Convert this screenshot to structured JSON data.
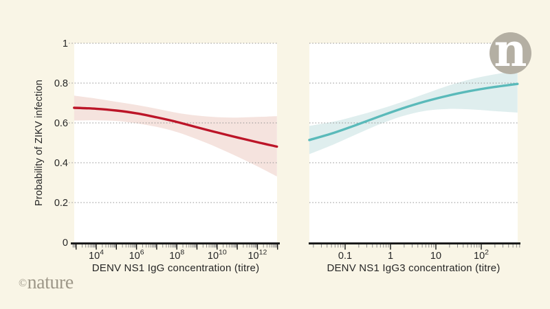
{
  "background": "#f9f5e6",
  "branding": {
    "logo_letter": "n",
    "logo_bg": "#b4afa3",
    "credit_symbol": "©",
    "credit_name": "nature",
    "credit_color": "#9e9889"
  },
  "chart_data": {
    "type": "line",
    "title": "",
    "description": "Two-panel fitted probability curves with confidence bands",
    "legend": "none",
    "y_axis": {
      "label": "Probability of ZIKV infection",
      "range": [
        0,
        1
      ],
      "ticks": [
        0,
        0.2,
        0.4,
        0.6,
        0.8,
        1
      ],
      "gridlines": "dotted horizontal at 0.2,0.4,0.6,0.8,1"
    },
    "panels": [
      {
        "name": "DENV NS1 IgG",
        "xlabel": "DENV NS1 IgG concentration (titre)",
        "x_scale": "log10",
        "x_domain_log10": [
          2.9,
          12.97
        ],
        "x_major_tick_logs": [
          3,
          4,
          5,
          6,
          7,
          8,
          9,
          10,
          11,
          12,
          13
        ],
        "x_tick_labels": [
          {
            "log": 4,
            "text": "10",
            "sup": "4"
          },
          {
            "log": 6,
            "text": "10",
            "sup": "6"
          },
          {
            "log": 8,
            "text": "10",
            "sup": "8"
          },
          {
            "log": 10,
            "text": "10",
            "sup": "10"
          },
          {
            "log": 12,
            "text": "10",
            "sup": "12"
          }
        ],
        "trend": "decreasing",
        "line_color": "#bc1528",
        "band_color": "#f5e3de",
        "line_log10x_y": [
          [
            2.9,
            0.676
          ],
          [
            4,
            0.671
          ],
          [
            5,
            0.662
          ],
          [
            6,
            0.648
          ],
          [
            7,
            0.628
          ],
          [
            8,
            0.605
          ],
          [
            9,
            0.578
          ],
          [
            10,
            0.552
          ],
          [
            11,
            0.527
          ],
          [
            12,
            0.503
          ],
          [
            12.97,
            0.481
          ]
        ],
        "band_upper_log10x_y": [
          [
            2.9,
            0.737
          ],
          [
            4,
            0.722
          ],
          [
            5,
            0.706
          ],
          [
            6,
            0.69
          ],
          [
            7,
            0.671
          ],
          [
            8,
            0.651
          ],
          [
            9,
            0.637
          ],
          [
            10,
            0.629
          ],
          [
            11,
            0.627
          ],
          [
            12,
            0.63
          ],
          [
            12.97,
            0.634
          ]
        ],
        "band_lower_log10x_y": [
          [
            2.9,
            0.612
          ],
          [
            4,
            0.613
          ],
          [
            5,
            0.61
          ],
          [
            6,
            0.598
          ],
          [
            7,
            0.58
          ],
          [
            8,
            0.554
          ],
          [
            9,
            0.518
          ],
          [
            10,
            0.477
          ],
          [
            11,
            0.431
          ],
          [
            12,
            0.382
          ],
          [
            12.97,
            0.331
          ]
        ]
      },
      {
        "name": "DENV NS1 IgG3",
        "xlabel": "DENV NS1 IgG3 concentration (titre)",
        "x_scale": "log10",
        "x_domain_log10": [
          -1.79,
          2.8
        ],
        "x_major_tick_logs": [
          -1,
          0,
          1,
          2
        ],
        "x_tick_labels": [
          {
            "log": -1,
            "text": "0.1"
          },
          {
            "log": 0,
            "text": "1"
          },
          {
            "log": 1,
            "text": "10"
          },
          {
            "log": 2,
            "text": "10",
            "sup": "2"
          }
        ],
        "trend": "increasing",
        "line_color": "#5ababa",
        "band_color": "#dfeeee",
        "line_log10x_y": [
          [
            -1.79,
            0.514
          ],
          [
            -1.25,
            0.55
          ],
          [
            -0.75,
            0.59
          ],
          [
            -0.25,
            0.632
          ],
          [
            0.25,
            0.672
          ],
          [
            0.75,
            0.707
          ],
          [
            1.25,
            0.736
          ],
          [
            1.75,
            0.76
          ],
          [
            2.25,
            0.779
          ],
          [
            2.8,
            0.796
          ]
        ],
        "band_upper_log10x_y": [
          [
            -1.79,
            0.585
          ],
          [
            -1.25,
            0.607
          ],
          [
            -0.75,
            0.635
          ],
          [
            -0.25,
            0.668
          ],
          [
            0.25,
            0.705
          ],
          [
            0.75,
            0.745
          ],
          [
            1.25,
            0.785
          ],
          [
            1.75,
            0.818
          ],
          [
            2.25,
            0.842
          ],
          [
            2.8,
            0.862
          ]
        ],
        "band_lower_log10x_y": [
          [
            -1.79,
            0.443
          ],
          [
            -1.25,
            0.492
          ],
          [
            -0.75,
            0.543
          ],
          [
            -0.25,
            0.592
          ],
          [
            0.25,
            0.633
          ],
          [
            0.75,
            0.66
          ],
          [
            1.25,
            0.67
          ],
          [
            1.75,
            0.668
          ],
          [
            2.25,
            0.66
          ],
          [
            2.8,
            0.652
          ]
        ]
      }
    ],
    "style": {
      "axis_color": "#1a1a1a",
      "text_color": "#262626",
      "gridline_color": "#8f8f8f",
      "minor_tick_color": "#8a8a8a",
      "plot_background": "#ffffff"
    }
  }
}
